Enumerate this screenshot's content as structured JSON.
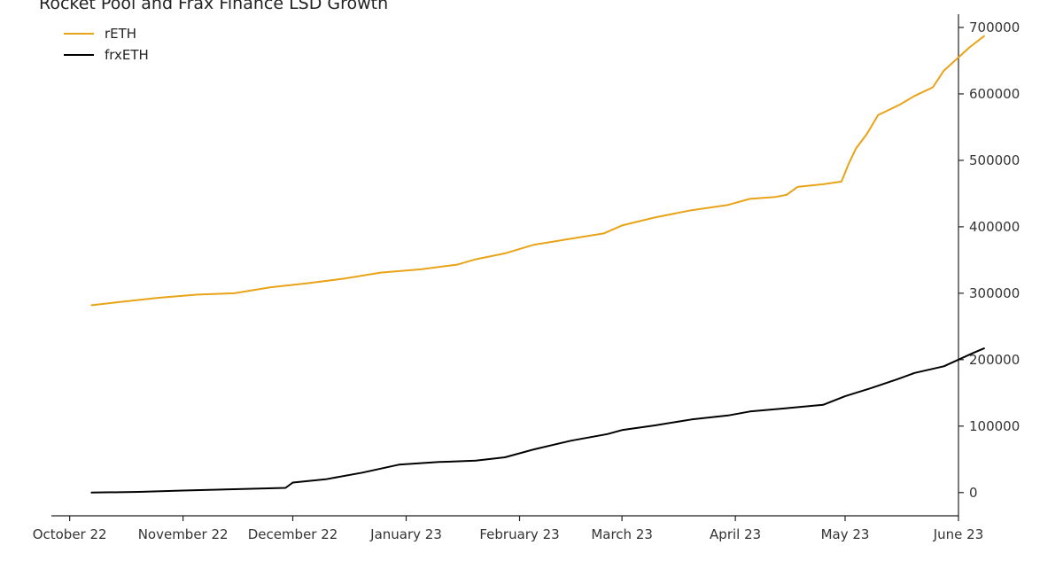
{
  "chart_data": {
    "type": "line",
    "title": "Rocket Pool and Frax Finance LSD Growth",
    "xlabel": "",
    "ylabel": "",
    "x_range": [
      "2022-09-26",
      "2023-06-01"
    ],
    "ylim": [
      -35000,
      720000
    ],
    "x_ticks": [
      {
        "date": "2022-10-01",
        "label": "October 22"
      },
      {
        "date": "2022-11-01",
        "label": "November 22"
      },
      {
        "date": "2022-12-01",
        "label": "December 22"
      },
      {
        "date": "2023-01-01",
        "label": "January 23"
      },
      {
        "date": "2023-02-01",
        "label": "February 23"
      },
      {
        "date": "2023-03-01",
        "label": "March 23"
      },
      {
        "date": "2023-04-01",
        "label": "April 23"
      },
      {
        "date": "2023-05-01",
        "label": "May 23"
      },
      {
        "date": "2023-06-01",
        "label": "June 23"
      }
    ],
    "y_ticks": [
      0,
      100000,
      200000,
      300000,
      400000,
      500000,
      600000,
      700000
    ],
    "y_axis_position": "right",
    "grid": false,
    "legend_position": "top-left",
    "series": [
      {
        "name": "rETH",
        "color": "#e8a317",
        "points": [
          [
            "2022-10-07",
            282000
          ],
          [
            "2022-10-15",
            287000
          ],
          [
            "2022-10-25",
            293000
          ],
          [
            "2022-11-05",
            298000
          ],
          [
            "2022-11-15",
            300000
          ],
          [
            "2022-11-25",
            309000
          ],
          [
            "2022-12-05",
            315000
          ],
          [
            "2022-12-15",
            322000
          ],
          [
            "2022-12-25",
            331000
          ],
          [
            "2023-01-05",
            336000
          ],
          [
            "2023-01-15",
            343000
          ],
          [
            "2023-01-20",
            351000
          ],
          [
            "2023-01-28",
            360000
          ],
          [
            "2023-02-05",
            373000
          ],
          [
            "2023-02-15",
            382000
          ],
          [
            "2023-02-24",
            390000
          ],
          [
            "2023-03-01",
            402000
          ],
          [
            "2023-03-10",
            414000
          ],
          [
            "2023-03-20",
            425000
          ],
          [
            "2023-03-30",
            433000
          ],
          [
            "2023-04-05",
            442000
          ],
          [
            "2023-04-12",
            445000
          ],
          [
            "2023-04-15",
            448000
          ],
          [
            "2023-04-18",
            460000
          ],
          [
            "2023-04-25",
            464000
          ],
          [
            "2023-04-30",
            468000
          ],
          [
            "2023-05-02",
            495000
          ],
          [
            "2023-05-04",
            518000
          ],
          [
            "2023-05-07",
            540000
          ],
          [
            "2023-05-10",
            568000
          ],
          [
            "2023-05-16",
            584000
          ],
          [
            "2023-05-20",
            597000
          ],
          [
            "2023-05-25",
            610000
          ],
          [
            "2023-05-28",
            635000
          ],
          [
            "2023-05-31",
            650000
          ],
          [
            "2023-06-04",
            670000
          ],
          [
            "2023-06-08",
            687000
          ]
        ]
      },
      {
        "name": "frxETH",
        "color": "#000000",
        "points": [
          [
            "2022-10-07",
            0
          ],
          [
            "2022-10-20",
            1000
          ],
          [
            "2022-11-01",
            3000
          ],
          [
            "2022-11-15",
            5000
          ],
          [
            "2022-11-29",
            7000
          ],
          [
            "2022-12-01",
            15000
          ],
          [
            "2022-12-10",
            20000
          ],
          [
            "2022-12-20",
            30000
          ],
          [
            "2022-12-30",
            42000
          ],
          [
            "2023-01-10",
            46000
          ],
          [
            "2023-01-20",
            48000
          ],
          [
            "2023-01-28",
            53000
          ],
          [
            "2023-02-05",
            65000
          ],
          [
            "2023-02-15",
            78000
          ],
          [
            "2023-02-25",
            88000
          ],
          [
            "2023-03-01",
            94000
          ],
          [
            "2023-03-10",
            101000
          ],
          [
            "2023-03-20",
            110000
          ],
          [
            "2023-03-30",
            116000
          ],
          [
            "2023-04-05",
            122000
          ],
          [
            "2023-04-15",
            127000
          ],
          [
            "2023-04-25",
            132000
          ],
          [
            "2023-05-01",
            145000
          ],
          [
            "2023-05-08",
            157000
          ],
          [
            "2023-05-15",
            170000
          ],
          [
            "2023-05-20",
            180000
          ],
          [
            "2023-05-28",
            190000
          ],
          [
            "2023-06-01",
            200000
          ],
          [
            "2023-06-05",
            210000
          ],
          [
            "2023-06-08",
            217000
          ]
        ]
      }
    ]
  }
}
